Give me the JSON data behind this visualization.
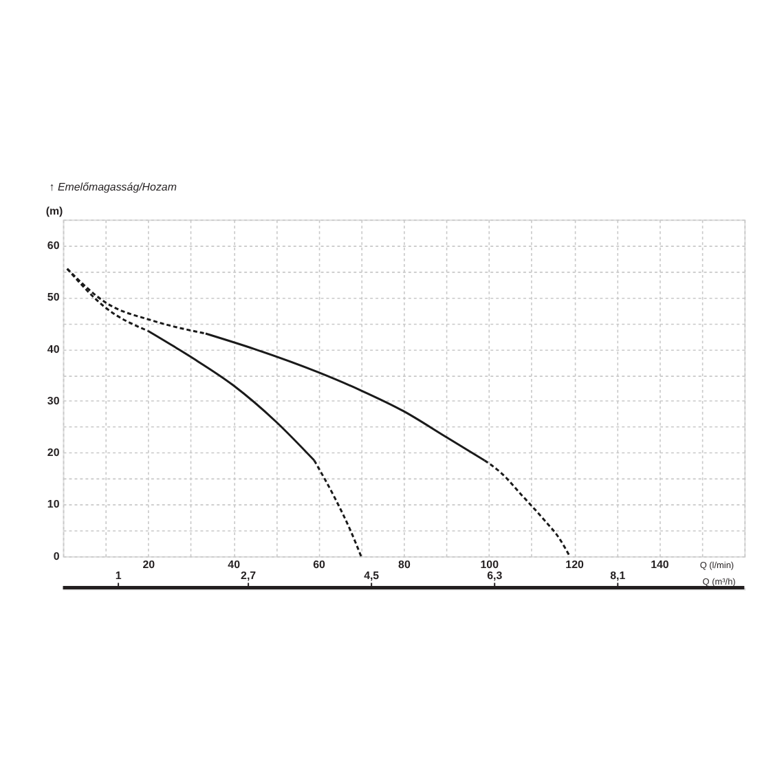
{
  "chart_data": {
    "type": "line",
    "title": "↑ Emelőmagasság/Hozam",
    "ylabel": "(m)",
    "xlabel": "Q (l/min)",
    "x2label": "Q (m³/h)",
    "xlim": [
      0,
      160
    ],
    "xticks": [
      {
        "value": 0,
        "label": null
      },
      {
        "value": 10,
        "label": null
      },
      20,
      {
        "value": 30,
        "label": null
      },
      40,
      {
        "value": 50,
        "label": null
      },
      60,
      {
        "value": 70,
        "label": null
      },
      80,
      {
        "value": 90,
        "label": null
      },
      100,
      {
        "value": 110,
        "label": null
      },
      120,
      {
        "value": 130,
        "label": null
      },
      140,
      {
        "value": 150,
        "label": null
      },
      {
        "value": 160,
        "label": null
      }
    ],
    "ylim": [
      0,
      65
    ],
    "yticks": [
      0,
      {
        "value": 5,
        "label": null
      },
      10,
      {
        "value": 15,
        "label": null
      },
      20,
      {
        "value": 25,
        "label": null
      },
      30,
      {
        "value": 35,
        "label": null
      },
      40,
      {
        "value": 45,
        "label": null
      },
      50,
      {
        "value": 55,
        "label": null
      },
      60,
      {
        "value": 65,
        "label": null
      }
    ],
    "x2lim": [
      0,
      9.96
    ],
    "x2ticks": [
      {
        "value": 0.8,
        "label": "1"
      },
      {
        "value": 2.7,
        "label": "2,7"
      },
      {
        "value": 4.5,
        "label": "4,5"
      },
      {
        "value": 6.3,
        "label": "6,3"
      },
      {
        "value": 8.1,
        "label": "8,1"
      }
    ],
    "grid": true,
    "series": [
      {
        "line_style": "dashed",
        "color": "#1a1a1a",
        "x": [
          1,
          10,
          20
        ],
        "values": [
          55.5,
          48,
          43.5
        ]
      },
      {
        "line_style": "solid",
        "color": "#1a1a1a",
        "x": [
          20,
          30,
          40,
          50,
          59
        ],
        "values": [
          43.5,
          38.5,
          33,
          26,
          18.5
        ]
      },
      {
        "line_style": "dashed",
        "color": "#1a1a1a",
        "x": [
          59,
          64,
          67.5,
          70
        ],
        "values": [
          18.5,
          11,
          5,
          0
        ]
      },
      {
        "line_style": "dashed",
        "color": "#1a1a1a",
        "x": [
          1,
          10,
          21,
          33.5
        ],
        "values": [
          55.5,
          49,
          45.5,
          43
        ]
      },
      {
        "line_style": "solid",
        "color": "#1a1a1a",
        "x": [
          33.5,
          45,
          60,
          70,
          80,
          90,
          99
        ],
        "values": [
          43,
          40,
          35.5,
          32,
          28,
          23,
          18.5
        ]
      },
      {
        "line_style": "dashed",
        "color": "#1a1a1a",
        "x": [
          99,
          103,
          107.5,
          113,
          116.5,
          119
        ],
        "values": [
          18.5,
          16,
          12,
          7,
          3.5,
          0
        ]
      }
    ]
  }
}
